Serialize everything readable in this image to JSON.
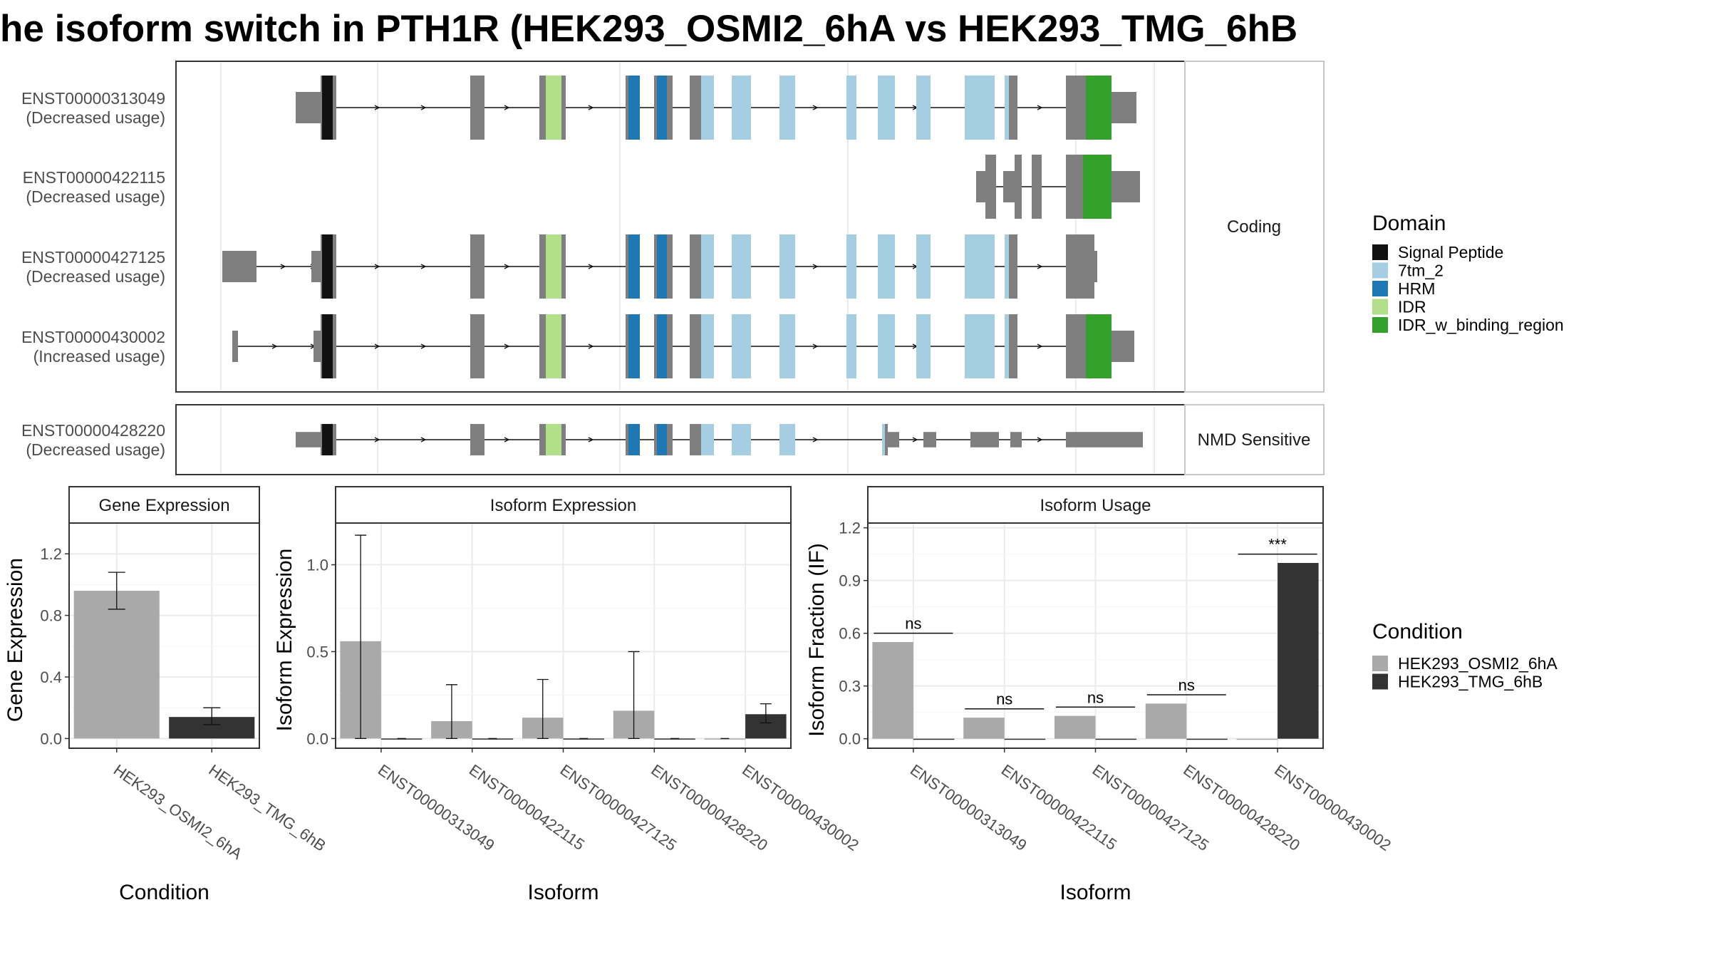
{
  "title": "he isoform switch in PTH1R (HEK293_OSMI2_6hA vs HEK293_TMG_6hB",
  "colors": {
    "Signal Peptide": "#111111",
    "7tm_2": "#a6cee3",
    "HRM": "#1f78b4",
    "IDR": "#b2df8a",
    "IDR_w_binding_region": "#33a02c",
    "exon": "#7f7f7f",
    "HEK293_OSMI2_6hA": "#a9a9a9",
    "HEK293_TMG_6hB": "#333333"
  },
  "transcripts": {
    "coding_strip": "Coding",
    "nmd_strip": "NMD Sensitive",
    "rows": [
      {
        "id": "ENST00000313049",
        "usage": "(Decreased usage)",
        "group": "coding"
      },
      {
        "id": "ENST00000422115",
        "usage": "(Decreased usage)",
        "group": "coding"
      },
      {
        "id": "ENST00000427125",
        "usage": "(Decreased usage)",
        "group": "coding"
      },
      {
        "id": "ENST00000430002",
        "usage": "(Increased usage)",
        "group": "coding"
      },
      {
        "id": "ENST00000428220",
        "usage": "(Decreased usage)",
        "group": "nmd"
      }
    ]
  },
  "legend_domain": {
    "title": "Domain",
    "items": [
      "Signal Peptide",
      "7tm_2",
      "HRM",
      "IDR",
      "IDR_w_binding_region"
    ]
  },
  "legend_condition": {
    "title": "Condition",
    "items": [
      "HEK293_OSMI2_6hA",
      "HEK293_TMG_6hB"
    ]
  },
  "chart_data": [
    {
      "type": "bar",
      "title": "Gene Expression",
      "xlabel": "Condition",
      "ylabel": "Gene Expression",
      "categories": [
        "HEK293_OSMI2_6hA",
        "HEK293_TMG_6hB"
      ],
      "values": [
        0.96,
        0.14
      ],
      "error_low": [
        0.84,
        0.09
      ],
      "error_high": [
        1.08,
        0.2
      ],
      "yticks": [
        0.0,
        0.4,
        0.8,
        1.2
      ],
      "ylim": [
        0,
        1.4
      ]
    },
    {
      "type": "bar",
      "title": "Isoform Expression",
      "xlabel": "Isoform",
      "ylabel": "Isoform Expression",
      "categories": [
        "ENST00000313049",
        "ENST00000422115",
        "ENST00000427125",
        "ENST00000428220",
        "ENST00000430002"
      ],
      "series": [
        {
          "name": "HEK293_OSMI2_6hA",
          "values": [
            0.56,
            0.1,
            0.12,
            0.16,
            0.0
          ],
          "error_low": [
            0.0,
            0.0,
            0.0,
            0.0,
            0.0
          ],
          "error_high": [
            1.17,
            0.31,
            0.34,
            0.5,
            0.0
          ]
        },
        {
          "name": "HEK293_TMG_6hB",
          "values": [
            0.0,
            0.0,
            0.0,
            0.0,
            0.14
          ],
          "error_low": [
            0.0,
            0.0,
            0.0,
            0.0,
            0.09
          ],
          "error_high": [
            0.0,
            0.0,
            0.0,
            0.0,
            0.2
          ]
        }
      ],
      "yticks": [
        0.0,
        0.5,
        1.0
      ],
      "ylim": [
        0,
        1.24
      ]
    },
    {
      "type": "bar",
      "title": "Isoform Usage",
      "xlabel": "Isoform",
      "ylabel": "Isoform Fraction (IF)",
      "categories": [
        "ENST00000313049",
        "ENST00000422115",
        "ENST00000427125",
        "ENST00000428220",
        "ENST00000430002"
      ],
      "series": [
        {
          "name": "HEK293_OSMI2_6hA",
          "values": [
            0.55,
            0.12,
            0.13,
            0.2,
            0.0
          ]
        },
        {
          "name": "HEK293_TMG_6hB",
          "values": [
            0.0,
            0.0,
            0.0,
            0.0,
            1.0
          ]
        }
      ],
      "significance": [
        "ns",
        "ns",
        "ns",
        "ns",
        "***"
      ],
      "yticks": [
        0.0,
        0.3,
        0.6,
        0.9,
        1.2
      ],
      "ylim": [
        0,
        1.2
      ]
    }
  ]
}
